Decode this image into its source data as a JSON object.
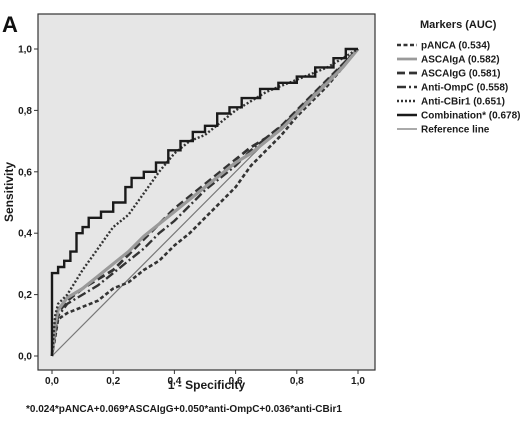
{
  "panel_letter": "A",
  "formula": "*0.024*pANCA+0.069*ASCAIgG+0.050*anti-OmpC+0.036*anti-CBir1",
  "colors": {
    "plot_background": "#e6e6e6",
    "frame": "#333333"
  },
  "legend": {
    "title": "Markers (AUC)"
  },
  "chart_data": {
    "type": "line",
    "title": "",
    "xlabel": "1 - Specificity",
    "ylabel": "Sensitivity",
    "xlim": [
      0.0,
      1.0
    ],
    "ylim": [
      0.0,
      1.0
    ],
    "xticks": [
      "0,0",
      "0,2",
      "0,4",
      "0,6",
      "0,8",
      "1,0"
    ],
    "yticks": [
      "0,0",
      "0,2",
      "0,4",
      "0,6",
      "0,8",
      "1,0"
    ],
    "grid": false,
    "legend_position": "right",
    "series": [
      {
        "name": "pANCA (0.534)",
        "color": "#333333",
        "dash": "4,2.5",
        "width": 2.6,
        "points": [
          [
            0,
            0
          ],
          [
            0.01,
            0.06
          ],
          [
            0.02,
            0.12
          ],
          [
            0.05,
            0.14
          ],
          [
            0.1,
            0.16
          ],
          [
            0.15,
            0.18
          ],
          [
            0.2,
            0.22
          ],
          [
            0.25,
            0.24
          ],
          [
            0.3,
            0.28
          ],
          [
            0.35,
            0.31
          ],
          [
            0.4,
            0.36
          ],
          [
            0.45,
            0.4
          ],
          [
            0.5,
            0.45
          ],
          [
            0.55,
            0.5
          ],
          [
            0.6,
            0.55
          ],
          [
            0.65,
            0.62
          ],
          [
            0.7,
            0.67
          ],
          [
            0.75,
            0.72
          ],
          [
            0.8,
            0.78
          ],
          [
            0.85,
            0.83
          ],
          [
            0.9,
            0.88
          ],
          [
            0.95,
            0.94
          ],
          [
            1,
            1
          ]
        ]
      },
      {
        "name": "ASCAIgA (0.582)",
        "color": "#9a9a9a",
        "dash": "",
        "width": 3.2,
        "points": [
          [
            0,
            0
          ],
          [
            0.01,
            0.1
          ],
          [
            0.02,
            0.15
          ],
          [
            0.05,
            0.19
          ],
          [
            0.1,
            0.22
          ],
          [
            0.15,
            0.26
          ],
          [
            0.2,
            0.3
          ],
          [
            0.25,
            0.34
          ],
          [
            0.3,
            0.39
          ],
          [
            0.35,
            0.43
          ],
          [
            0.4,
            0.47
          ],
          [
            0.45,
            0.51
          ],
          [
            0.5,
            0.55
          ],
          [
            0.55,
            0.59
          ],
          [
            0.6,
            0.63
          ],
          [
            0.65,
            0.66
          ],
          [
            0.7,
            0.7
          ],
          [
            0.75,
            0.74
          ],
          [
            0.8,
            0.79
          ],
          [
            0.85,
            0.84
          ],
          [
            0.9,
            0.89
          ],
          [
            0.95,
            0.94
          ],
          [
            1,
            1
          ]
        ]
      },
      {
        "name": "ASCAIgG (0.581)",
        "color": "#333333",
        "dash": "8,4",
        "width": 2.8,
        "points": [
          [
            0,
            0
          ],
          [
            0.01,
            0.08
          ],
          [
            0.02,
            0.14
          ],
          [
            0.05,
            0.18
          ],
          [
            0.1,
            0.22
          ],
          [
            0.15,
            0.25
          ],
          [
            0.2,
            0.28
          ],
          [
            0.25,
            0.33
          ],
          [
            0.3,
            0.38
          ],
          [
            0.35,
            0.43
          ],
          [
            0.4,
            0.48
          ],
          [
            0.45,
            0.52
          ],
          [
            0.5,
            0.56
          ],
          [
            0.55,
            0.6
          ],
          [
            0.6,
            0.64
          ],
          [
            0.65,
            0.68
          ],
          [
            0.7,
            0.71
          ],
          [
            0.75,
            0.75
          ],
          [
            0.8,
            0.8
          ],
          [
            0.85,
            0.85
          ],
          [
            0.9,
            0.9
          ],
          [
            0.95,
            0.95
          ],
          [
            1,
            1
          ]
        ]
      },
      {
        "name": "Anti-OmpC (0.558)",
        "color": "#333333",
        "dash": "9,3,2,3",
        "width": 2.4,
        "points": [
          [
            0,
            0
          ],
          [
            0.01,
            0.08
          ],
          [
            0.02,
            0.13
          ],
          [
            0.05,
            0.17
          ],
          [
            0.1,
            0.2
          ],
          [
            0.15,
            0.23
          ],
          [
            0.2,
            0.27
          ],
          [
            0.25,
            0.31
          ],
          [
            0.3,
            0.35
          ],
          [
            0.35,
            0.4
          ],
          [
            0.4,
            0.44
          ],
          [
            0.45,
            0.49
          ],
          [
            0.5,
            0.54
          ],
          [
            0.55,
            0.58
          ],
          [
            0.6,
            0.62
          ],
          [
            0.65,
            0.67
          ],
          [
            0.7,
            0.71
          ],
          [
            0.75,
            0.75
          ],
          [
            0.8,
            0.79
          ],
          [
            0.85,
            0.84
          ],
          [
            0.9,
            0.89
          ],
          [
            0.95,
            0.95
          ],
          [
            1,
            1
          ]
        ]
      },
      {
        "name": "Anti-CBir1 (0.651)",
        "color": "#333333",
        "dash": "2,2",
        "width": 2.4,
        "points": [
          [
            0,
            0
          ],
          [
            0.01,
            0.13
          ],
          [
            0.02,
            0.17
          ],
          [
            0.05,
            0.2
          ],
          [
            0.1,
            0.28
          ],
          [
            0.15,
            0.35
          ],
          [
            0.2,
            0.42
          ],
          [
            0.25,
            0.46
          ],
          [
            0.3,
            0.53
          ],
          [
            0.35,
            0.6
          ],
          [
            0.4,
            0.66
          ],
          [
            0.45,
            0.7
          ],
          [
            0.5,
            0.72
          ],
          [
            0.55,
            0.76
          ],
          [
            0.6,
            0.8
          ],
          [
            0.65,
            0.83
          ],
          [
            0.7,
            0.86
          ],
          [
            0.75,
            0.88
          ],
          [
            0.8,
            0.9
          ],
          [
            0.85,
            0.92
          ],
          [
            0.9,
            0.94
          ],
          [
            0.95,
            0.97
          ],
          [
            1,
            1
          ]
        ]
      },
      {
        "name": "Combination* (0.678)",
        "color": "#1a1a1a",
        "dash": "",
        "width": 2.4,
        "step": true,
        "points": [
          [
            0,
            0
          ],
          [
            0,
            0.27
          ],
          [
            0.02,
            0.27
          ],
          [
            0.02,
            0.29
          ],
          [
            0.04,
            0.29
          ],
          [
            0.04,
            0.31
          ],
          [
            0.06,
            0.31
          ],
          [
            0.06,
            0.34
          ],
          [
            0.08,
            0.34
          ],
          [
            0.08,
            0.4
          ],
          [
            0.1,
            0.4
          ],
          [
            0.1,
            0.42
          ],
          [
            0.12,
            0.42
          ],
          [
            0.12,
            0.45
          ],
          [
            0.16,
            0.45
          ],
          [
            0.16,
            0.47
          ],
          [
            0.2,
            0.47
          ],
          [
            0.2,
            0.5
          ],
          [
            0.24,
            0.5
          ],
          [
            0.24,
            0.55
          ],
          [
            0.26,
            0.55
          ],
          [
            0.26,
            0.58
          ],
          [
            0.3,
            0.58
          ],
          [
            0.3,
            0.6
          ],
          [
            0.34,
            0.6
          ],
          [
            0.34,
            0.63
          ],
          [
            0.38,
            0.63
          ],
          [
            0.38,
            0.67
          ],
          [
            0.42,
            0.67
          ],
          [
            0.42,
            0.7
          ],
          [
            0.46,
            0.7
          ],
          [
            0.46,
            0.73
          ],
          [
            0.5,
            0.73
          ],
          [
            0.5,
            0.75
          ],
          [
            0.54,
            0.75
          ],
          [
            0.54,
            0.79
          ],
          [
            0.58,
            0.79
          ],
          [
            0.58,
            0.81
          ],
          [
            0.62,
            0.81
          ],
          [
            0.62,
            0.84
          ],
          [
            0.68,
            0.84
          ],
          [
            0.68,
            0.87
          ],
          [
            0.74,
            0.87
          ],
          [
            0.74,
            0.89
          ],
          [
            0.8,
            0.89
          ],
          [
            0.8,
            0.91
          ],
          [
            0.86,
            0.91
          ],
          [
            0.86,
            0.94
          ],
          [
            0.92,
            0.94
          ],
          [
            0.92,
            0.97
          ],
          [
            0.96,
            0.97
          ],
          [
            0.96,
            1
          ],
          [
            1,
            1
          ]
        ]
      },
      {
        "name": "Reference line",
        "color": "#777777",
        "dash": "",
        "width": 1.2,
        "points": [
          [
            0,
            0
          ],
          [
            1,
            1
          ]
        ]
      }
    ]
  }
}
